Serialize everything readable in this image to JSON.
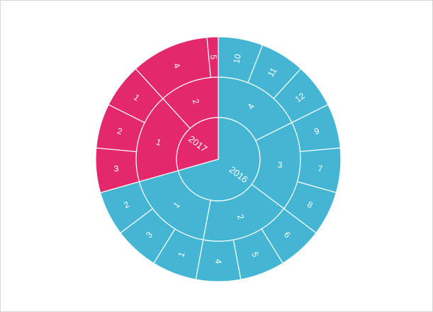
{
  "chart_data": {
    "type": "sunburst",
    "title": "",
    "levels": [
      "year",
      "quarter",
      "month"
    ],
    "colors": {
      "2016": "#44b6d4",
      "2017": "#e3296c",
      "border": "#ffffff"
    },
    "data": [
      {
        "name": "2016",
        "value": 12,
        "children": [
          {
            "name": "4",
            "value": 3,
            "children": [
              {
                "name": "10",
                "value": 1
              },
              {
                "name": "11",
                "value": 1
              },
              {
                "name": "12",
                "value": 1
              }
            ]
          },
          {
            "name": "3",
            "value": 3,
            "children": [
              {
                "name": "9",
                "value": 1
              },
              {
                "name": "7",
                "value": 1
              },
              {
                "name": "8",
                "value": 1
              }
            ]
          },
          {
            "name": "2",
            "value": 3,
            "children": [
              {
                "name": "6",
                "value": 1
              },
              {
                "name": "5",
                "value": 1
              },
              {
                "name": "4",
                "value": 1
              }
            ]
          },
          {
            "name": "1",
            "value": 3,
            "children": [
              {
                "name": "1",
                "value": 1
              },
              {
                "name": "3",
                "value": 1
              },
              {
                "name": "2",
                "value": 1
              }
            ]
          }
        ]
      },
      {
        "name": "2017",
        "value": 5,
        "children": [
          {
            "name": "1",
            "value": 3,
            "children": [
              {
                "name": "3",
                "value": 1
              },
              {
                "name": "2",
                "value": 1
              },
              {
                "name": "1",
                "value": 1
              }
            ]
          },
          {
            "name": "2",
            "value": 2,
            "children": [
              {
                "name": "4",
                "value": 1.75
              },
              {
                "name": "5",
                "value": 0.25
              }
            ]
          }
        ]
      }
    ]
  }
}
